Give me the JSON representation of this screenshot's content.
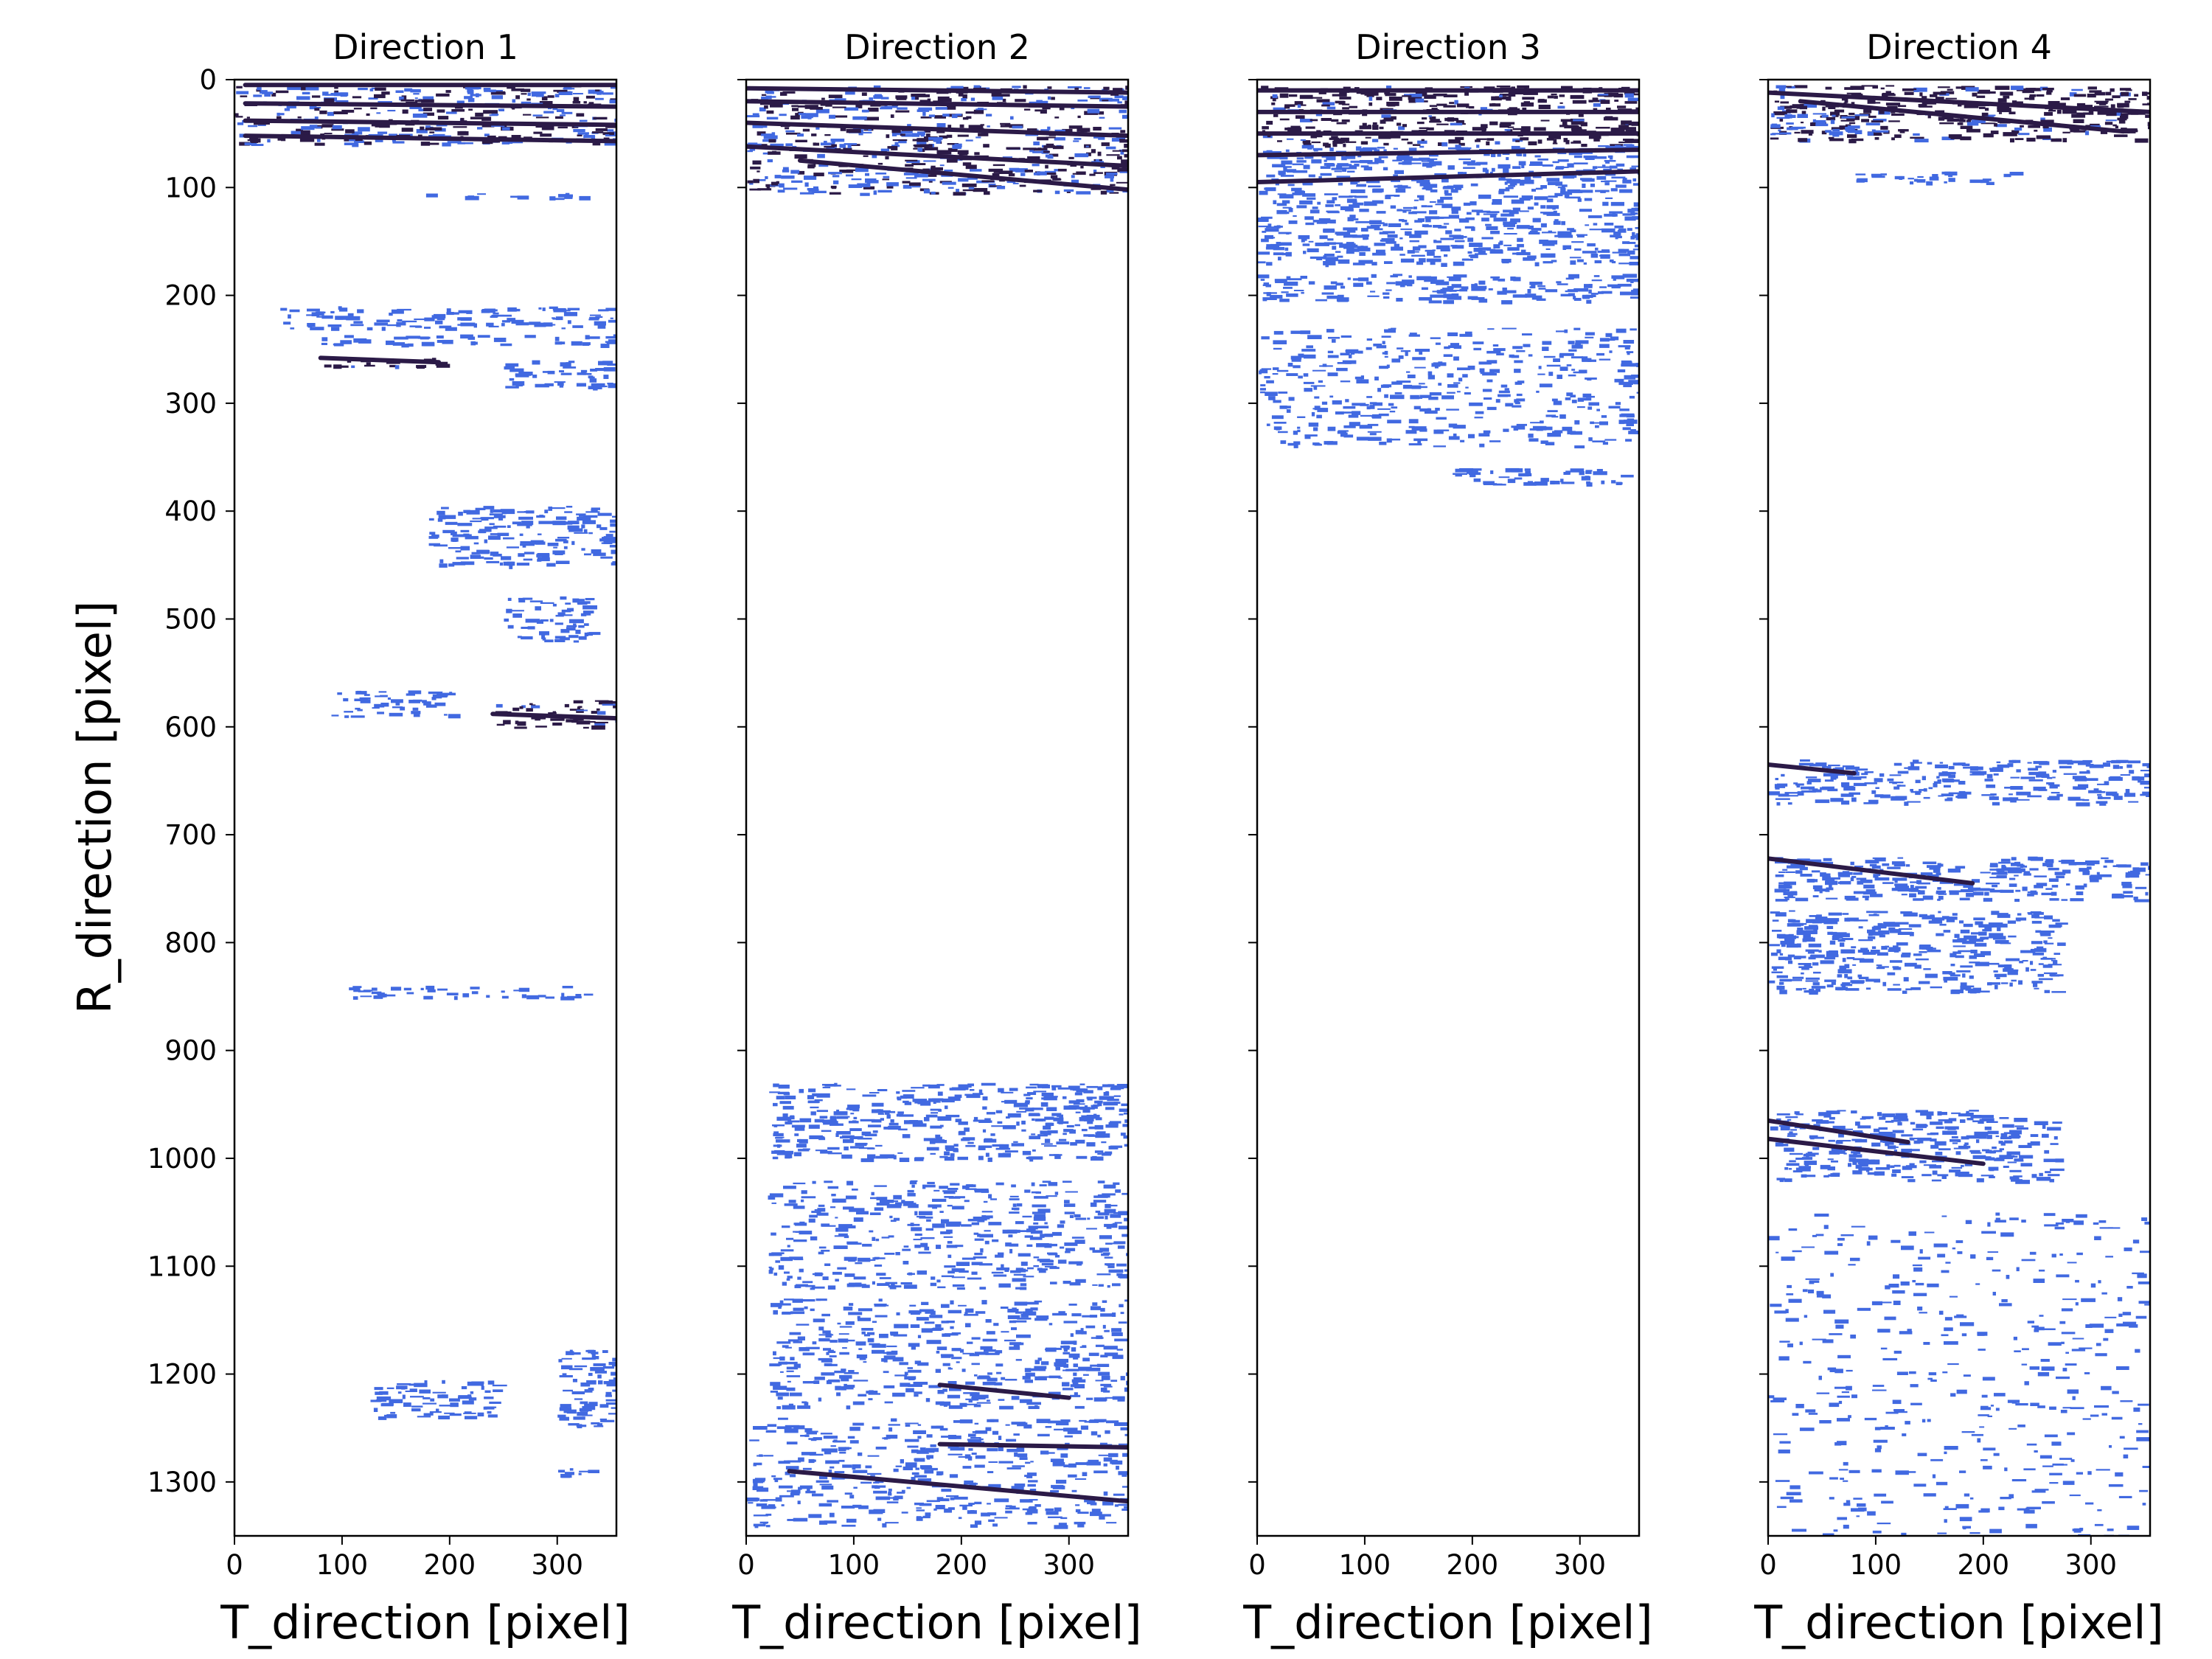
{
  "chart_data": {
    "type": "scatter",
    "title": "",
    "ylabel": "R_direction [pixel]",
    "xlabel": "T_direction [pixel]",
    "xlim": [
      0,
      355
    ],
    "ylim": [
      1350,
      0
    ],
    "y_inverted": true,
    "xticks": [
      0,
      100,
      200,
      300
    ],
    "yticks": [
      0,
      100,
      200,
      300,
      400,
      500,
      600,
      700,
      800,
      900,
      1000,
      1100,
      1200,
      1300
    ],
    "colors": {
      "light": "#4169e1",
      "dark": "#2b1a47"
    },
    "grid": false,
    "panels": [
      {
        "title": "Direction 1",
        "bands": [
          {
            "x0": 0,
            "x1": 355,
            "r0": 5,
            "r1": 60,
            "shade": "mixed"
          },
          {
            "x0": 170,
            "x1": 330,
            "r0": 105,
            "r1": 110,
            "shade": "light"
          },
          {
            "x0": 40,
            "x1": 350,
            "r0": 210,
            "r1": 230,
            "shade": "light"
          },
          {
            "x0": 80,
            "x1": 355,
            "r0": 236,
            "r1": 245,
            "shade": "light"
          },
          {
            "x0": 80,
            "x1": 190,
            "r0": 256,
            "r1": 266,
            "shade": "dark"
          },
          {
            "x0": 250,
            "x1": 355,
            "r0": 260,
            "r1": 285,
            "shade": "light"
          },
          {
            "x0": 180,
            "x1": 355,
            "r0": 395,
            "r1": 450,
            "shade": "light"
          },
          {
            "x0": 250,
            "x1": 330,
            "r0": 478,
            "r1": 520,
            "shade": "light"
          },
          {
            "x0": 90,
            "x1": 200,
            "r0": 565,
            "r1": 590,
            "shade": "light"
          },
          {
            "x0": 240,
            "x1": 355,
            "r0": 575,
            "r1": 600,
            "shade": "dark"
          },
          {
            "x0": 100,
            "x1": 330,
            "r0": 840,
            "r1": 850,
            "shade": "light"
          },
          {
            "x0": 300,
            "x1": 355,
            "r0": 1175,
            "r1": 1250,
            "shade": "light"
          },
          {
            "x0": 120,
            "x1": 240,
            "r0": 1205,
            "r1": 1240,
            "shade": "light"
          },
          {
            "x0": 300,
            "x1": 330,
            "r0": 1285,
            "r1": 1295,
            "shade": "light"
          }
        ],
        "dark_lines": [
          {
            "x0": 10,
            "r0": 5,
            "x1": 355,
            "r1": 5
          },
          {
            "x0": 10,
            "r0": 22,
            "x1": 355,
            "r1": 25
          },
          {
            "x0": 10,
            "r0": 38,
            "x1": 355,
            "r1": 42
          },
          {
            "x0": 10,
            "r0": 52,
            "x1": 355,
            "r1": 57
          },
          {
            "x0": 80,
            "r0": 258,
            "x1": 190,
            "r1": 262
          },
          {
            "x0": 240,
            "r0": 588,
            "x1": 355,
            "r1": 592
          }
        ]
      },
      {
        "title": "Direction 2",
        "bands": [
          {
            "x0": 0,
            "x1": 355,
            "r0": 5,
            "r1": 35,
            "shade": "mixed"
          },
          {
            "x0": 0,
            "x1": 355,
            "r0": 40,
            "r1": 105,
            "shade": "mixed"
          },
          {
            "x0": 20,
            "x1": 355,
            "r0": 930,
            "r1": 1000,
            "shade": "light"
          },
          {
            "x0": 20,
            "x1": 355,
            "r0": 1020,
            "r1": 1120,
            "shade": "light"
          },
          {
            "x0": 20,
            "x1": 355,
            "r0": 1130,
            "r1": 1230,
            "shade": "light"
          },
          {
            "x0": 0,
            "x1": 355,
            "r0": 1240,
            "r1": 1340,
            "shade": "light"
          }
        ],
        "dark_lines": [
          {
            "x0": 0,
            "r0": 8,
            "x1": 355,
            "r1": 12
          },
          {
            "x0": 0,
            "r0": 20,
            "x1": 355,
            "r1": 25
          },
          {
            "x0": 0,
            "r0": 40,
            "x1": 355,
            "r1": 52
          },
          {
            "x0": 0,
            "r0": 62,
            "x1": 355,
            "r1": 80
          },
          {
            "x0": 50,
            "r0": 75,
            "x1": 355,
            "r1": 102
          },
          {
            "x0": 180,
            "r0": 1210,
            "x1": 300,
            "r1": 1222
          },
          {
            "x0": 180,
            "r0": 1265,
            "x1": 355,
            "r1": 1268
          },
          {
            "x0": 40,
            "r0": 1290,
            "x1": 355,
            "r1": 1318
          }
        ]
      },
      {
        "title": "Direction 3",
        "bands": [
          {
            "x0": 0,
            "x1": 355,
            "r0": 5,
            "r1": 60,
            "shade": "dark"
          },
          {
            "x0": 0,
            "x1": 355,
            "r0": 60,
            "r1": 110,
            "shade": "light"
          },
          {
            "x0": 0,
            "x1": 355,
            "r0": 110,
            "r1": 170,
            "shade": "light"
          },
          {
            "x0": 0,
            "x1": 355,
            "r0": 180,
            "r1": 205,
            "shade": "light"
          },
          {
            "x0": 0,
            "x1": 355,
            "r0": 230,
            "r1": 340,
            "shade": "light"
          },
          {
            "x0": 180,
            "x1": 355,
            "r0": 360,
            "r1": 375,
            "shade": "light"
          }
        ],
        "dark_lines": [
          {
            "x0": 0,
            "r0": 10,
            "x1": 355,
            "r1": 10
          },
          {
            "x0": 0,
            "r0": 30,
            "x1": 355,
            "r1": 30
          },
          {
            "x0": 0,
            "r0": 50,
            "x1": 355,
            "r1": 50
          },
          {
            "x0": 0,
            "r0": 70,
            "x1": 355,
            "r1": 65
          },
          {
            "x0": 0,
            "r0": 95,
            "x1": 355,
            "r1": 85
          }
        ]
      },
      {
        "title": "Direction 4",
        "bands": [
          {
            "x0": 0,
            "x1": 355,
            "r0": 5,
            "r1": 55,
            "shade": "dark"
          },
          {
            "x0": 0,
            "x1": 100,
            "r0": 30,
            "r1": 50,
            "shade": "light"
          },
          {
            "x0": 80,
            "x1": 230,
            "r0": 85,
            "r1": 95,
            "shade": "light"
          },
          {
            "x0": 0,
            "x1": 355,
            "r0": 630,
            "r1": 670,
            "shade": "light"
          },
          {
            "x0": 0,
            "x1": 355,
            "r0": 720,
            "r1": 760,
            "shade": "light"
          },
          {
            "x0": 0,
            "x1": 270,
            "r0": 770,
            "r1": 845,
            "shade": "light"
          },
          {
            "x0": 0,
            "x1": 270,
            "r0": 955,
            "r1": 1020,
            "shade": "light"
          },
          {
            "x0": 0,
            "x1": 350,
            "r0": 1050,
            "r1": 1350,
            "shade": "light"
          }
        ],
        "dark_lines": [
          {
            "x0": 0,
            "r0": 12,
            "x1": 355,
            "r1": 30
          },
          {
            "x0": 30,
            "r0": 20,
            "x1": 330,
            "r1": 48
          },
          {
            "x0": 0,
            "r0": 635,
            "x1": 80,
            "r1": 643
          },
          {
            "x0": 0,
            "r0": 722,
            "x1": 190,
            "r1": 745
          },
          {
            "x0": 0,
            "r0": 965,
            "x1": 130,
            "r1": 985
          },
          {
            "x0": 0,
            "r0": 982,
            "x1": 200,
            "r1": 1005
          }
        ]
      }
    ]
  }
}
